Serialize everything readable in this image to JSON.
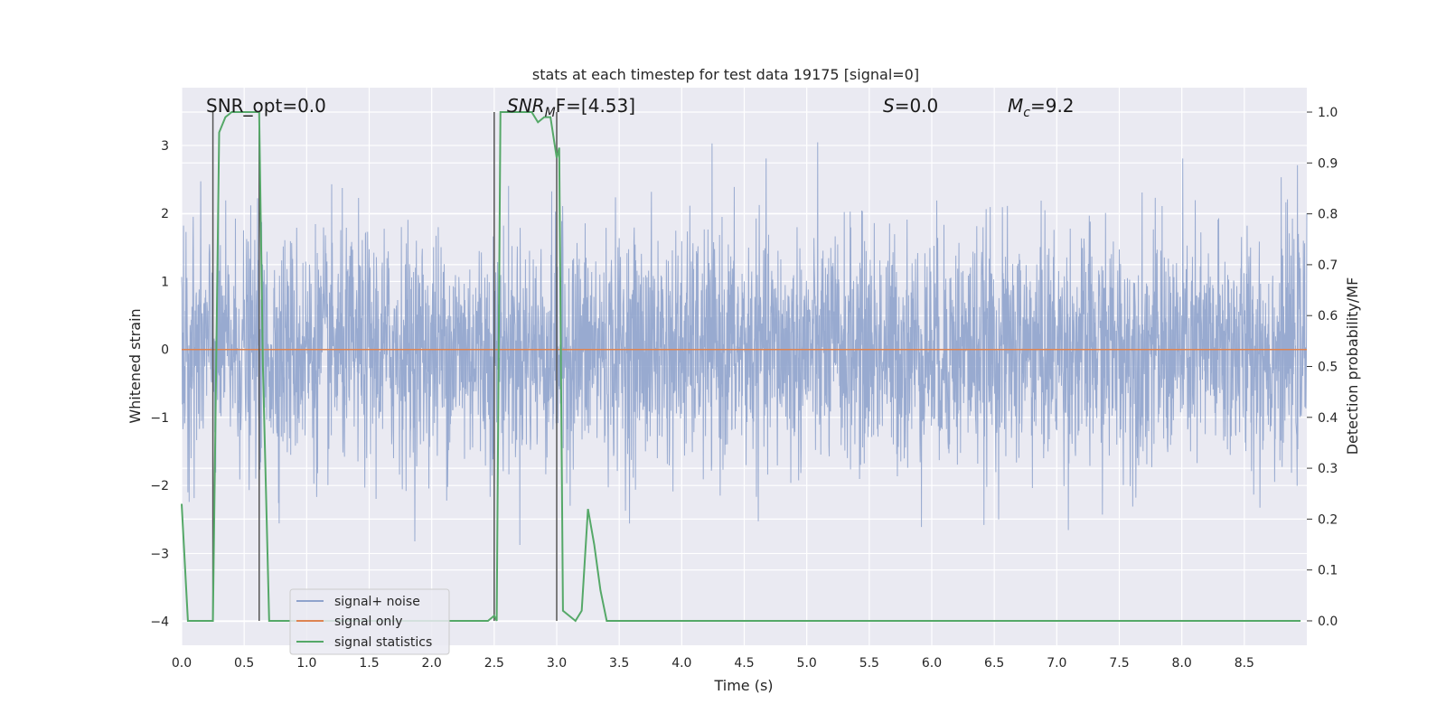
{
  "chart_data": {
    "type": "line",
    "title": "stats at each timestep for test data 19175 [signal=0]",
    "xlabel": "Time (s)",
    "ylabel": "Whitened strain",
    "y2label": "Detection probability/MF",
    "xlim": [
      0.0,
      9.0
    ],
    "ylim": [
      -4.35,
      3.85
    ],
    "y2lim": [
      -0.048,
      1.048
    ],
    "xticks": [
      0.0,
      0.5,
      1.0,
      1.5,
      2.0,
      2.5,
      3.0,
      3.5,
      4.0,
      4.5,
      5.0,
      5.5,
      6.0,
      6.5,
      7.0,
      7.5,
      8.0,
      8.5
    ],
    "xtick_labels": [
      "0.0",
      "0.5",
      "1.0",
      "1.5",
      "2.0",
      "2.5",
      "3.0",
      "3.5",
      "4.0",
      "4.5",
      "5.0",
      "5.5",
      "6.0",
      "6.5",
      "7.0",
      "7.5",
      "8.0",
      "8.5"
    ],
    "yticks": [
      -4,
      -3,
      -2,
      -1,
      0,
      1,
      2,
      3
    ],
    "ytick_labels": [
      "−4",
      "−3",
      "−2",
      "−1",
      "0",
      "1",
      "2",
      "3"
    ],
    "y2ticks": [
      0.0,
      0.1,
      0.2,
      0.3,
      0.4,
      0.5,
      0.6,
      0.7,
      0.8,
      0.9,
      1.0
    ],
    "y2tick_labels": [
      "0.0",
      "0.1",
      "0.2",
      "0.3",
      "0.4",
      "0.5",
      "0.6",
      "0.7",
      "0.8",
      "0.9",
      "1.0"
    ],
    "grid": true,
    "legend_position": "lower-left",
    "annotations": {
      "snr_opt": "SNR_opt=0.0",
      "snr_mf_main": "SNR",
      "snr_mf_sub": "M",
      "snr_mf_rest": "F=[4.53]",
      "s_main": "S",
      "s_rest": "=0.0",
      "mc_main": "M",
      "mc_sub": "c",
      "mc_rest": "=9.2"
    },
    "series": [
      {
        "name": "signal+ noise",
        "color": "#8fa3cc",
        "axis": "left",
        "style": "noise",
        "sigma": 0.85,
        "y_range": [
          -4.0,
          3.5
        ]
      },
      {
        "name": "signal only",
        "color": "#dd8452",
        "axis": "left",
        "x": [
          0.0,
          9.0
        ],
        "y": [
          0.0,
          0.0
        ]
      },
      {
        "name": "signal statistics",
        "color": "#55a868",
        "axis": "right",
        "x": [
          0.0,
          0.05,
          0.1,
          0.2,
          0.25,
          0.3,
          0.35,
          0.4,
          0.5,
          0.6,
          0.62,
          0.65,
          0.7,
          1.0,
          1.5,
          2.0,
          2.4,
          2.45,
          2.5,
          2.52,
          2.55,
          2.6,
          2.7,
          2.8,
          2.85,
          2.9,
          2.95,
          3.0,
          3.02,
          3.05,
          3.1,
          3.15,
          3.2,
          3.25,
          3.3,
          3.35,
          3.4,
          3.5,
          4.0,
          5.0,
          6.0,
          7.0,
          8.0,
          8.95
        ],
        "y": [
          0.23,
          0.0,
          0.0,
          0.0,
          0.0,
          0.96,
          0.99,
          1.0,
          1.0,
          1.0,
          1.0,
          0.5,
          0.0,
          0.0,
          0.0,
          0.0,
          0.0,
          0.0,
          0.01,
          0.0,
          1.0,
          1.0,
          1.0,
          1.0,
          0.98,
          0.99,
          0.99,
          0.91,
          0.93,
          0.02,
          0.01,
          0.0,
          0.02,
          0.22,
          0.15,
          0.06,
          0.0,
          0.0,
          0.0,
          0.0,
          0.0,
          0.0,
          0.0,
          0.0
        ]
      }
    ],
    "vertical_lines": [
      0.25,
      0.62,
      2.5,
      3.0
    ],
    "vertical_lines_color": "#555555"
  }
}
